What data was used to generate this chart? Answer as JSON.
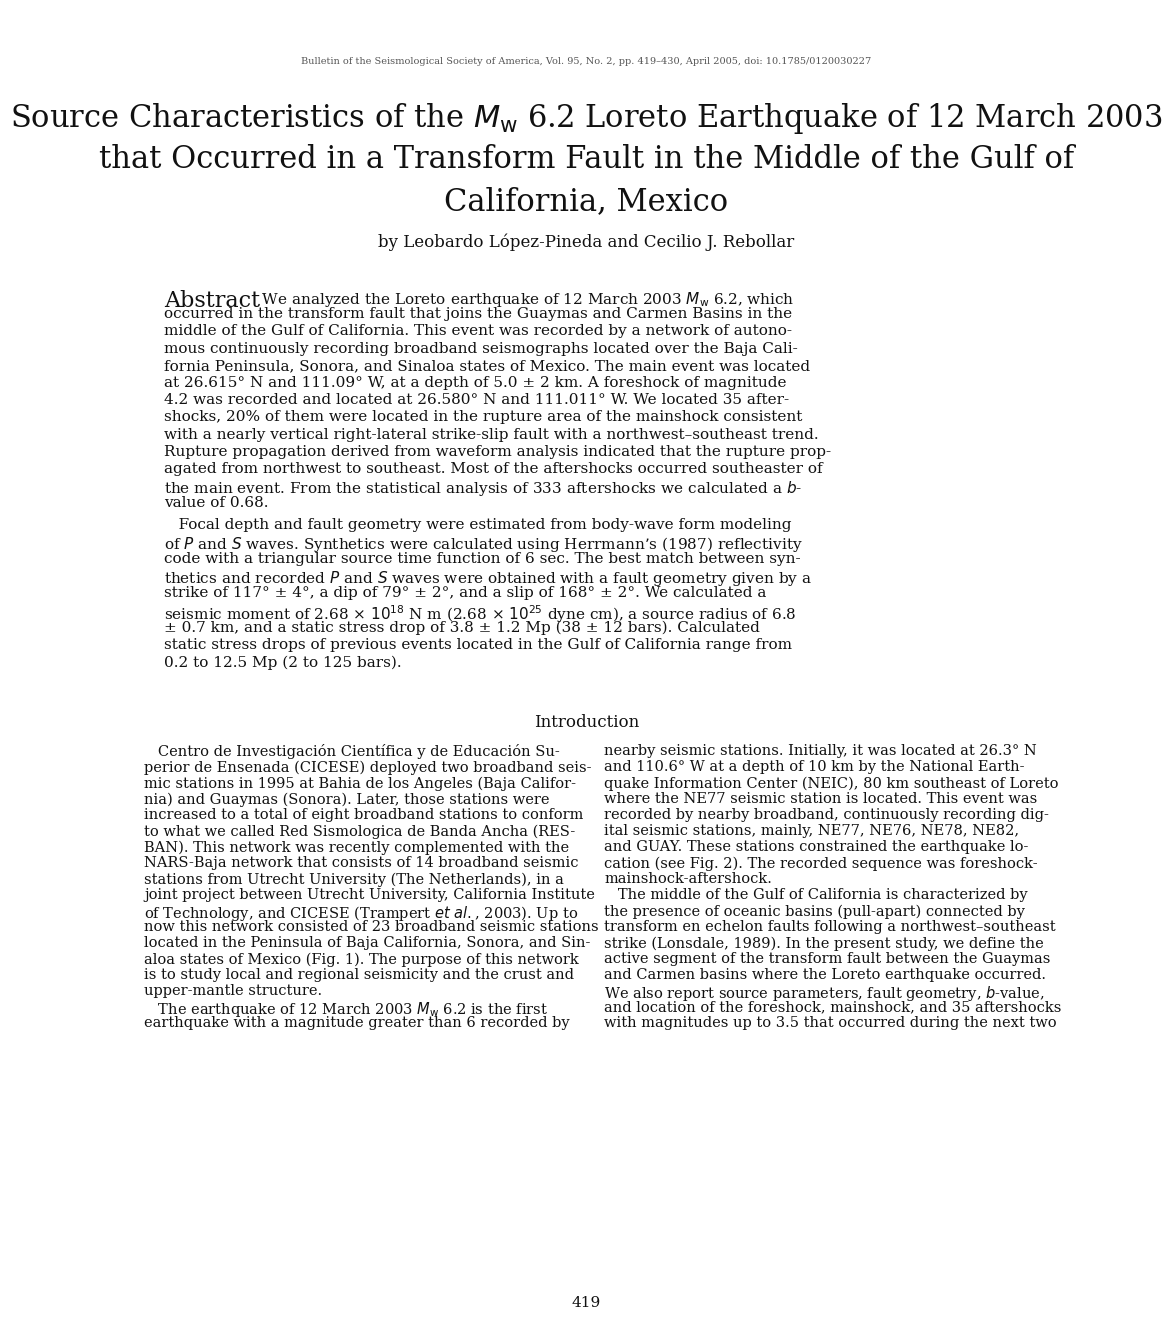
{
  "background_color": "#ffffff",
  "journal_line": "Bulletin of the Seismological Society of America, Vol. 95, No. 2, pp. 419–430, April 2005, doi: 10.1785/0120030227",
  "title_line1": "Source Characteristics of the $\\mathit{M}_{\\mathrm{w}}$ 6.2 Loreto Earthquake of 12 March 2003",
  "title_line2": "that Occurred in a Transform Fault in the Middle of the Gulf of",
  "title_line3": "California, Mexico",
  "author_line": "by Leobardo López-Pineda and Cecilio J. Rebollar",
  "abstract_word": "Abstract",
  "abs1_lines": [
    "  We analyzed the Loreto earthquake of 12 March 2003 $\\mathit{M}_{\\mathrm{w}}$ 6.2, which",
    "occurred in the transform fault that joins the Guaymas and Carmen Basins in the",
    "middle of the Gulf of California. This event was recorded by a network of autono-",
    "mous continuously recording broadband seismographs located over the Baja Cali-",
    "fornia Peninsula, Sonora, and Sinaloa states of Mexico. The main event was located",
    "at 26.615° N and 111.09° W, at a depth of 5.0 ± 2 km. A foreshock of magnitude",
    "4.2 was recorded and located at 26.580° N and 111.011° W. We located 35 after-",
    "shocks, 20% of them were located in the rupture area of the mainshock consistent",
    "with a nearly vertical right-lateral strike-slip fault with a northwest–southeast trend.",
    "Rupture propagation derived from waveform analysis indicated that the rupture prop-",
    "agated from northwest to southeast. Most of the aftershocks occurred southeaster of",
    "the main event. From the statistical analysis of 333 aftershocks we calculated a $\\mathit{b}$-",
    "value of 0.68."
  ],
  "abs2_lines": [
    "   Focal depth and fault geometry were estimated from body-wave form modeling",
    "of $\\mathit{P}$ and $\\mathit{S}$ waves. Synthetics were calculated using Herrmann’s (1987) reflectivity",
    "code with a triangular source time function of 6 sec. The best match between syn-",
    "thetics and recorded $\\mathit{P}$ and $\\mathit{S}$ waves were obtained with a fault geometry given by a",
    "strike of 117° ± 4°, a dip of 79° ± 2°, and a slip of 168° ± 2°. We calculated a",
    "seismic moment of 2.68 × $10^{18}$ N m (2.68 × $10^{25}$ dyne cm), a source radius of 6.8",
    "± 0.7 km, and a static stress drop of 3.8 ± 1.2 Mp (38 ± 12 bars). Calculated",
    "static stress drops of previous events located in the Gulf of California range from",
    "0.2 to 12.5 Mp (2 to 125 bars)."
  ],
  "intro_heading": "Introduction",
  "col1_lines": [
    "   Centro de Investigación Científica y de Educación Su-",
    "perior de Ensenada (CICESE) deployed two broadband seis-",
    "mic stations in 1995 at Bahia de los Angeles (Baja Califor-",
    "nia) and Guaymas (Sonora). Later, those stations were",
    "increased to a total of eight broadband stations to conform",
    "to what we called Red Sismologica de Banda Ancha (RES-",
    "BAN). This network was recently complemented with the",
    "NARS-Baja network that consists of 14 broadband seismic",
    "stations from Utrecht University (The Netherlands), in a",
    "joint project between Utrecht University, California Institute",
    "of Technology, and CICESE (Trampert $\\mathit{et\\ al.}$, 2003). Up to",
    "now this network consisted of 23 broadband seismic stations",
    "located in the Peninsula of Baja California, Sonora, and Sin-",
    "aloa states of Mexico (Fig. 1). The purpose of this network",
    "is to study local and regional seismicity and the crust and",
    "upper-mantle structure.",
    "   The earthquake of 12 March 2003 $\\mathit{M}_{\\mathrm{w}}$ 6.2 is the first",
    "earthquake with a magnitude greater than 6 recorded by"
  ],
  "col2_lines": [
    "nearby seismic stations. Initially, it was located at 26.3° N",
    "and 110.6° W at a depth of 10 km by the National Earth-",
    "quake Information Center (NEIC), 80 km southeast of Loreto",
    "where the NE77 seismic station is located. This event was",
    "recorded by nearby broadband, continuously recording dig-",
    "ital seismic stations, mainly, NE77, NE76, NE78, NE82,",
    "and GUAY. These stations constrained the earthquake lo-",
    "cation (see Fig. 2). The recorded sequence was foreshock-",
    "mainshock-aftershock.",
    "   The middle of the Gulf of California is characterized by",
    "the presence of oceanic basins (pull-apart) connected by",
    "transform en echelon faults following a northwest–southeast",
    "strike (Lonsdale, 1989). In the present study, we define the",
    "active segment of the transform fault between the Guaymas",
    "and Carmen basins where the Loreto earthquake occurred.",
    "We also report source parameters, fault geometry, $\\mathit{b}$-value,",
    "and location of the foreshock, mainshock, and 35 aftershocks",
    "with magnitudes up to 3.5 that occurred during the next two"
  ],
  "page_number": "419"
}
